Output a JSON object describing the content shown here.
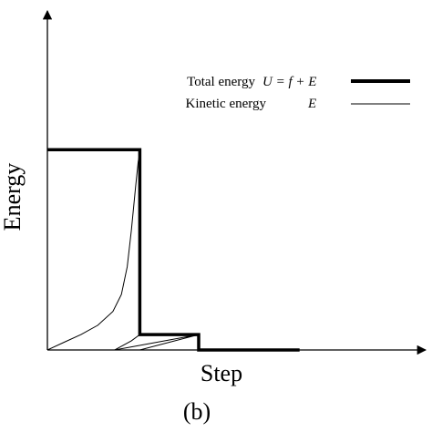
{
  "chart_data": {
    "type": "line",
    "caption": "(b)",
    "xlabel": "Step",
    "ylabel": "Energy",
    "grid": false,
    "ticks": false,
    "xlim": [
      0,
      4.5
    ],
    "ylim": [
      0,
      2.2
    ],
    "legend_position": "top-right",
    "series": [
      {
        "name": "Total energy",
        "formula": "U = f + E",
        "style": "thick",
        "points": [
          [
            0,
            1.3
          ],
          [
            1.1,
            1.3
          ],
          [
            1.1,
            0.1
          ],
          [
            1.8,
            0.1
          ],
          [
            1.8,
            0
          ],
          [
            3.0,
            0
          ]
        ]
      },
      {
        "name": "Kinetic energy",
        "formula": "E",
        "style": "thin",
        "points": [
          [
            0,
            0
          ],
          [
            0.2,
            0.05
          ],
          [
            0.4,
            0.1
          ],
          [
            0.6,
            0.16
          ],
          [
            0.78,
            0.25
          ],
          [
            0.88,
            0.36
          ],
          [
            0.95,
            0.54
          ],
          [
            1.0,
            0.78
          ],
          [
            1.05,
            1.06
          ],
          [
            1.08,
            1.22
          ],
          [
            1.1,
            1.28
          ],
          [
            1.1,
            0.1
          ],
          [
            1.0,
            0.06
          ],
          [
            0.8,
            0.0
          ],
          [
            1.8,
            0.1
          ],
          [
            1.1,
            0.0
          ],
          [
            1.8,
            0.0
          ]
        ]
      }
    ]
  }
}
